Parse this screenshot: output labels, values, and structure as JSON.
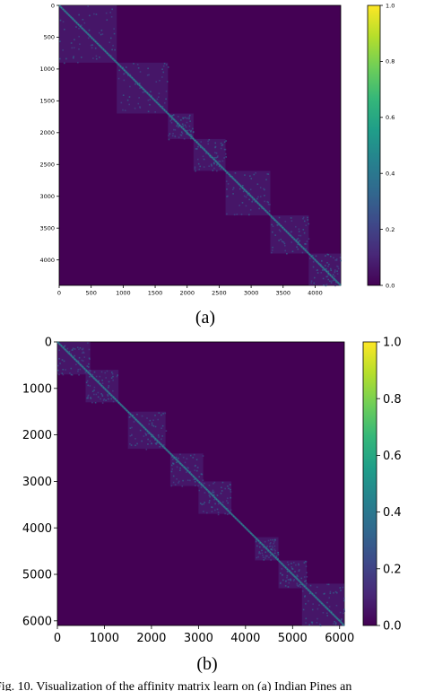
{
  "caption": "Fig. 10.   Visualization of the affinity matrix learn on (a) Indian Pines an",
  "colormap": {
    "name": "viridis",
    "stops": [
      "#440154",
      "#482878",
      "#3e4989",
      "#31688e",
      "#26828e",
      "#1f9e89",
      "#35b779",
      "#6ece58",
      "#b5de2b",
      "#fde725"
    ]
  },
  "chart_data": [
    {
      "type": "heatmap",
      "panel_label": "(a)",
      "matrix_size": 4400,
      "xlim": [
        0,
        4400
      ],
      "ylim": [
        0,
        4400
      ],
      "x_ticks": [
        0,
        500,
        1000,
        1500,
        2000,
        2500,
        3000,
        3500,
        4000
      ],
      "y_ticks": [
        0,
        500,
        1000,
        1500,
        2000,
        2500,
        3000,
        3500,
        4000
      ],
      "colorbar_ticks": [
        "0.0",
        "0.2",
        "0.4",
        "0.6",
        "0.8",
        "1.0"
      ],
      "colorbar_range": [
        0.0,
        1.0
      ],
      "blocks": [
        [
          0,
          900
        ],
        [
          900,
          1700
        ],
        [
          1700,
          2100
        ],
        [
          2100,
          2600
        ],
        [
          2600,
          3300
        ],
        [
          3300,
          3900
        ],
        [
          3900,
          4400
        ]
      ],
      "title": "",
      "xlabel": "",
      "ylabel": ""
    },
    {
      "type": "heatmap",
      "panel_label": "(b)",
      "matrix_size": 6100,
      "xlim": [
        0,
        6100
      ],
      "ylim": [
        0,
        6100
      ],
      "x_ticks": [
        0,
        1000,
        2000,
        3000,
        4000,
        5000,
        6000
      ],
      "y_ticks": [
        0,
        1000,
        2000,
        3000,
        4000,
        5000,
        6000
      ],
      "colorbar_ticks": [
        "0.0",
        "0.2",
        "0.4",
        "0.6",
        "0.8",
        "1.0"
      ],
      "colorbar_range": [
        0.0,
        1.0
      ],
      "blocks": [
        [
          0,
          700
        ],
        [
          600,
          1300
        ],
        [
          1500,
          2300
        ],
        [
          2400,
          3100
        ],
        [
          3000,
          3700
        ],
        [
          4200,
          4700
        ],
        [
          4700,
          5300
        ],
        [
          5200,
          6100
        ]
      ],
      "title": "",
      "xlabel": "",
      "ylabel": ""
    }
  ]
}
